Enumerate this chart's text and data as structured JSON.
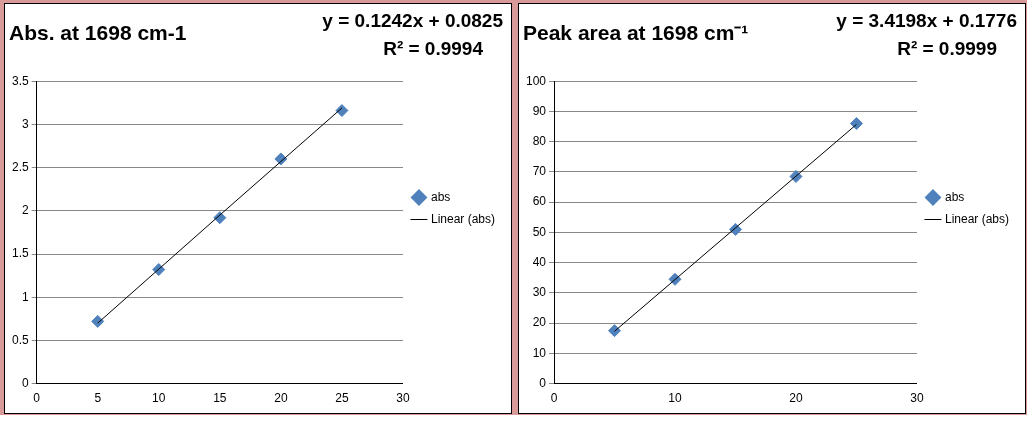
{
  "chart_data": [
    {
      "type": "scatter",
      "title": "Abs. at 1698 cm-1",
      "annotations": [
        "y = 0.1242x + 0.0825",
        "R² = 0.9994"
      ],
      "x": [
        5,
        10,
        15,
        20,
        25
      ],
      "series": [
        {
          "name": "abs",
          "type": "scatter",
          "color": "#4f81bd",
          "marker": "diamond",
          "values": [
            0.72,
            1.32,
            1.92,
            2.6,
            3.16
          ]
        },
        {
          "name": "Linear (abs)",
          "type": "line",
          "color": "#000000",
          "x": [
            5,
            15,
            25
          ],
          "values": [
            0.7,
            1.95,
            3.19
          ]
        }
      ],
      "xlim": [
        0,
        30
      ],
      "xticks": [
        0,
        5,
        10,
        15,
        20,
        25,
        30
      ],
      "ylim": [
        0,
        3.5
      ],
      "yticks": [
        0,
        0.5,
        1,
        1.5,
        2,
        2.5,
        3,
        3.5
      ],
      "grid": "y",
      "legend": "right"
    },
    {
      "type": "scatter",
      "title": "Peak area at 1698 cm⁻¹",
      "annotations": [
        "y = 3.4198x + 0.1776",
        "R² = 0.9999"
      ],
      "x": [
        5,
        10,
        15,
        20,
        25
      ],
      "series": [
        {
          "name": "abs",
          "type": "scatter",
          "color": "#4f81bd",
          "marker": "diamond",
          "values": [
            17.5,
            34.5,
            51,
            68.5,
            86
          ]
        },
        {
          "name": "Linear (abs)",
          "type": "line",
          "color": "#000000",
          "x": [
            5,
            15,
            25
          ],
          "values": [
            17.3,
            51.5,
            85.7
          ]
        }
      ],
      "xlim": [
        0,
        30
      ],
      "xticks": [
        0,
        10,
        20,
        30
      ],
      "ylim": [
        0,
        100
      ],
      "yticks": [
        0,
        10,
        20,
        30,
        40,
        50,
        60,
        70,
        80,
        90,
        100
      ],
      "grid": "y",
      "legend": "right"
    }
  ]
}
